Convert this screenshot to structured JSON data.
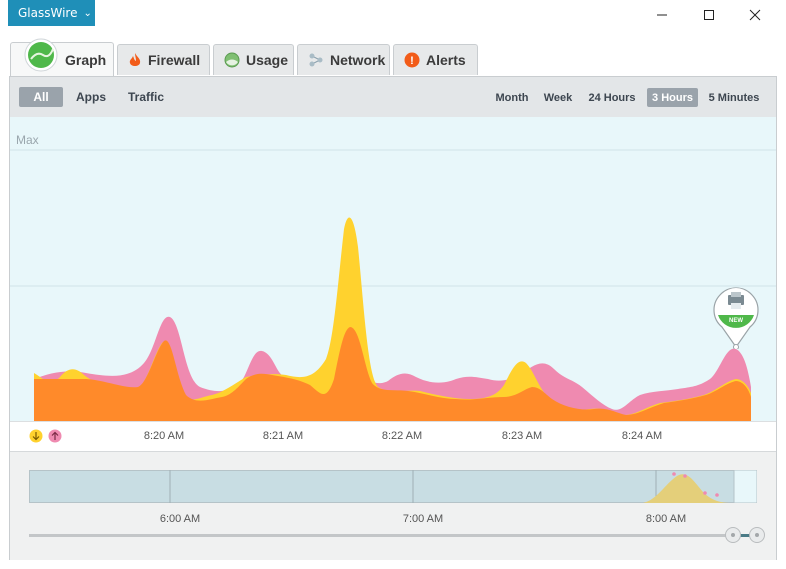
{
  "app": {
    "title": "GlassWire",
    "menu_caret": "⌄"
  },
  "window_controls": [
    "minimize-icon",
    "maximize-icon",
    "close-icon"
  ],
  "tabs": [
    {
      "label": "Graph",
      "icon": "graph-icon",
      "active": true
    },
    {
      "label": "Firewall",
      "icon": "flame-icon"
    },
    {
      "label": "Usage",
      "icon": "usage-icon"
    },
    {
      "label": "Network",
      "icon": "network-icon"
    },
    {
      "label": "Alerts",
      "icon": "alert-icon",
      "badge": "!"
    }
  ],
  "filters": {
    "all": "All",
    "apps": "Apps",
    "traffic": "Traffic",
    "selected": "All"
  },
  "time_ranges": {
    "month": "Month",
    "week": "Week",
    "hours24": "24 Hours",
    "hours3": "3 Hours",
    "minutes5": "5 Minutes",
    "selected": "3 Hours"
  },
  "graph": {
    "max_label": "Max",
    "x_ticks": [
      "8:20 AM",
      "8:21 AM",
      "8:22 AM",
      "8:23 AM",
      "8:24 AM"
    ],
    "legend": {
      "download_icon": "download-arrow-icon",
      "upload_icon": "upload-arrow-icon"
    },
    "marker": {
      "badge": "NEW",
      "icon": "printer-icon"
    },
    "colors": {
      "download": "#ffd22e",
      "upload": "#ef8ab0",
      "overlap": "#ff8a2a",
      "background": "#e8f7fa"
    }
  },
  "timeline": {
    "ticks": [
      "6:00 AM",
      "7:00 AM",
      "8:00 AM"
    ]
  }
}
